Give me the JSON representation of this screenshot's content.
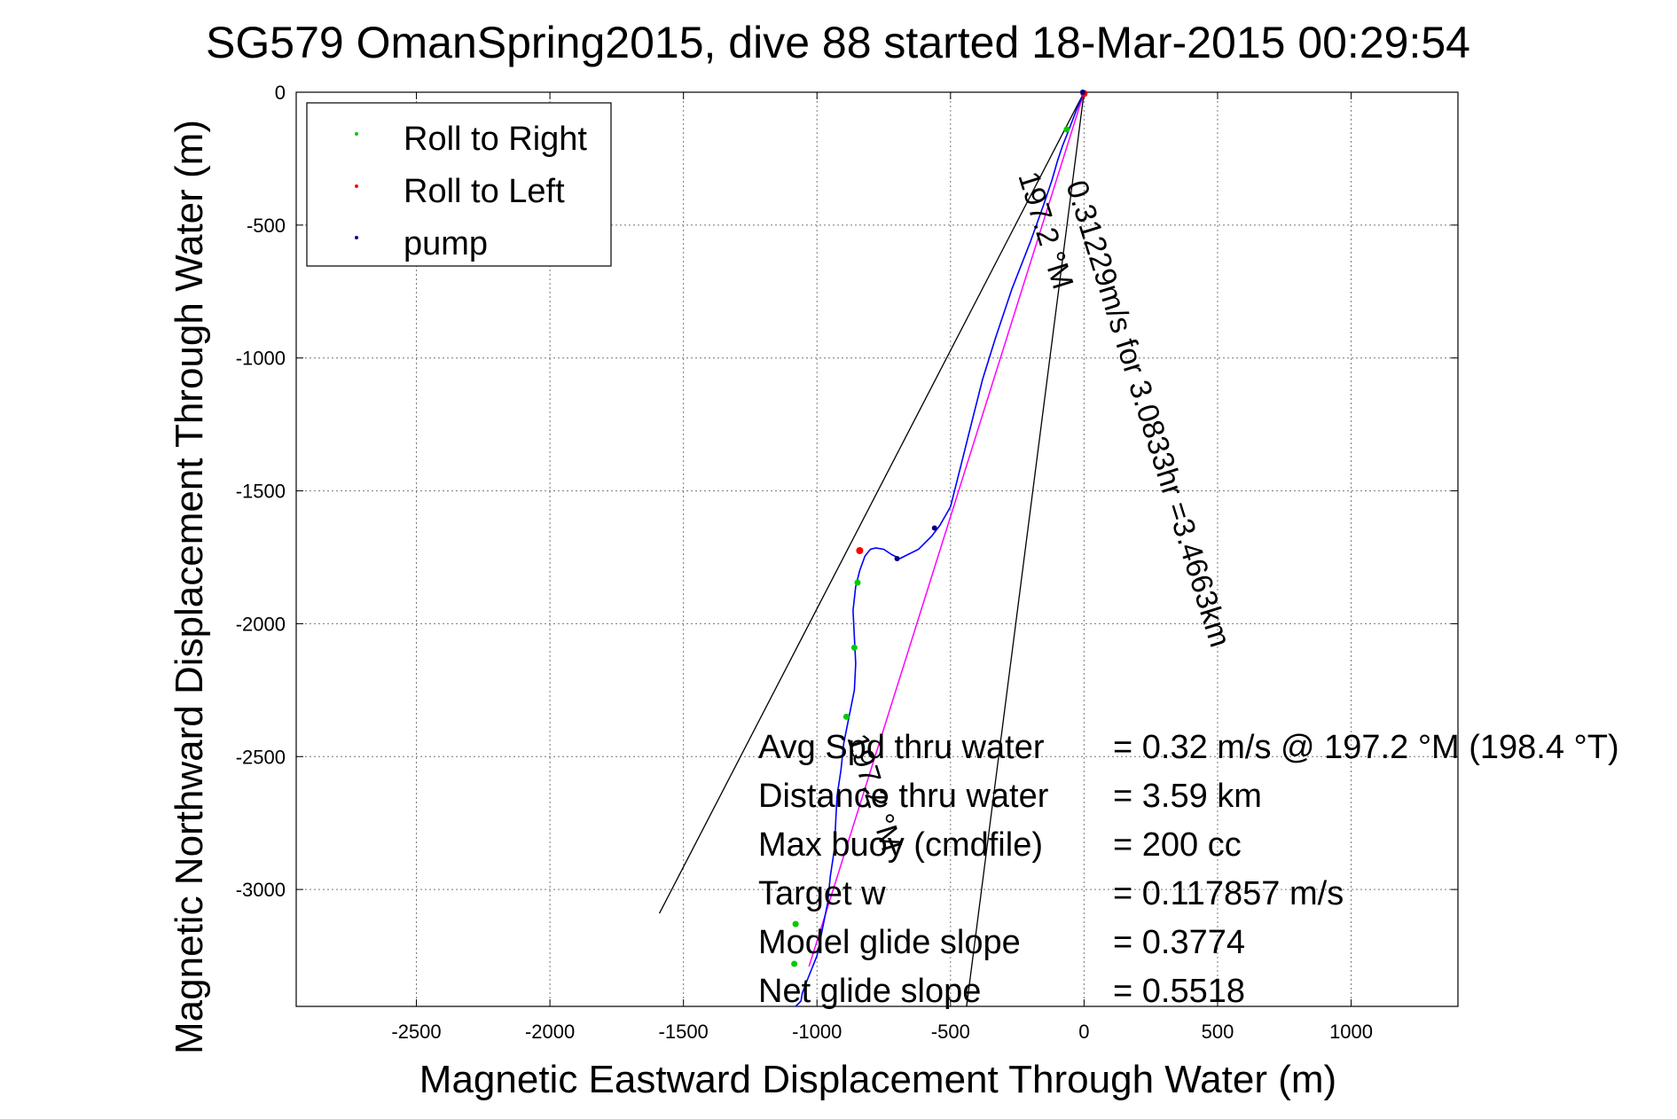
{
  "chart_data": {
    "type": "line",
    "title": "SG579 OmanSpring2015, dive 88 started 18-Mar-2015 00:29:54",
    "xlabel": "Magnetic Eastward Displacement Through Water (m)",
    "ylabel": "Magnetic Northward Displacement Through Water (m)",
    "xlim": [
      -2950,
      1400
    ],
    "ylim": [
      -3440,
      0
    ],
    "xticks": [
      -2500,
      -2000,
      -1500,
      -1000,
      -500,
      0,
      500,
      1000
    ],
    "yticks": [
      0,
      -500,
      -1000,
      -1500,
      -2000,
      -2500,
      -3000
    ],
    "grid": true,
    "legend": {
      "placement": "top-left",
      "entries": [
        {
          "label": "Roll to Right",
          "color": "#00cc00"
        },
        {
          "label": "Roll to Left",
          "color": "#ff0000"
        },
        {
          "label": "pump",
          "color": "#000080"
        }
      ]
    },
    "track": {
      "name": "glider track",
      "color": "#0000ff",
      "x": [
        0,
        -30,
        -60,
        -80,
        -100,
        -120,
        -150,
        -200,
        -270,
        -330,
        -380,
        -420,
        -460,
        -500,
        -540,
        -570,
        -590,
        -620,
        -660,
        -690,
        -720,
        -750,
        -780,
        -800,
        -820,
        -840,
        -855,
        -865,
        -860,
        -855,
        -860,
        -880,
        -900,
        -910,
        -925,
        -930,
        -935,
        -950,
        -960,
        -980,
        -990,
        -1000,
        -1020,
        -1040,
        -1055,
        -1060,
        -1070,
        -1080
      ],
      "y": [
        0,
        -70,
        -150,
        -200,
        -260,
        -330,
        -420,
        -560,
        -740,
        -920,
        -1080,
        -1240,
        -1400,
        -1560,
        -1630,
        -1670,
        -1690,
        -1720,
        -1740,
        -1755,
        -1740,
        -1720,
        -1715,
        -1720,
        -1745,
        -1800,
        -1860,
        -1950,
        -2050,
        -2150,
        -2250,
        -2350,
        -2450,
        -2550,
        -2650,
        -2750,
        -2850,
        -2950,
        -3050,
        -3150,
        -3200,
        -3250,
        -3300,
        -3350,
        -3390,
        -3420,
        -3430,
        -3440
      ]
    },
    "roll_right_points": [
      {
        "x": -65,
        "y": -140
      },
      {
        "x": -848,
        "y": -1845
      },
      {
        "x": -860,
        "y": -2090
      },
      {
        "x": -890,
        "y": -2350
      },
      {
        "x": -1080,
        "y": -3130
      },
      {
        "x": -1085,
        "y": -3280
      }
    ],
    "roll_left_points": [
      {
        "x": 0,
        "y": -5
      },
      {
        "x": -840,
        "y": -1725
      }
    ],
    "pump_points": [
      {
        "x": -5,
        "y": 0
      },
      {
        "x": -560,
        "y": -1640
      },
      {
        "x": -700,
        "y": -1755
      }
    ],
    "mean_vector": {
      "label": "0.31229m/s for 3.0833hr =3.4663km",
      "color": "#ff00ff",
      "start": [
        0,
        0
      ],
      "end": [
        -1030,
        -3290
      ]
    },
    "cone_lines": [
      {
        "start": [
          0,
          0
        ],
        "end": [
          -1590,
          -3090
        ]
      },
      {
        "start": [
          0,
          0
        ],
        "end": [
          -440,
          -3440
        ]
      }
    ],
    "heading_labels": [
      "197.2 °M",
      "197.2 °M"
    ],
    "stats": [
      {
        "label": "Avg Spd thru water",
        "value": "=  0.32 m/s @ 197.2 °M (198.4 °T)"
      },
      {
        "label": "Distance thru water",
        "value": "=  3.59 km"
      },
      {
        "label": "Max buoy (cmdfile)",
        "value": "= 200 cc"
      },
      {
        "label": "Target w",
        "value": "= 0.117857 m/s"
      },
      {
        "label": "Model glide slope",
        "value": "= 0.3774"
      },
      {
        "label": "Net glide slope",
        "value": "= 0.5518"
      }
    ]
  }
}
